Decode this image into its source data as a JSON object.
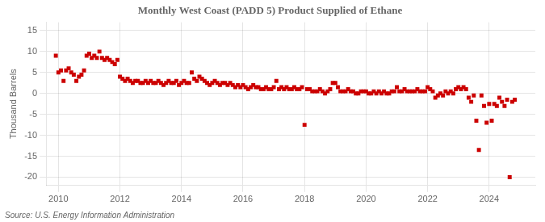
{
  "chart_data": {
    "type": "scatter",
    "title": "Monthly West Coast (PADD 5) Product Supplied of Ethane",
    "ylabel": "Thousand Barrels",
    "annotations": [
      "Source: U.S. Energy Information Administration"
    ],
    "color": "#cc0000",
    "marker": "square",
    "grid": true,
    "xlim": [
      2009.6,
      2025.5
    ],
    "xticks": [
      2010,
      2012,
      2014,
      2016,
      2018,
      2020,
      2022,
      2024
    ],
    "ylim": [
      -22,
      17
    ],
    "yticks": [
      -20,
      -15,
      -10,
      -5,
      0,
      5,
      10,
      15
    ],
    "x": [
      2009.9166666666667,
      2010,
      2010.0833333333333,
      2010.1666666666667,
      2010.25,
      2010.3333333333333,
      2010.4166666666667,
      2010.5,
      2010.5833333333333,
      2010.6666666666667,
      2010.75,
      2010.8333333333333,
      2010.9166666666667,
      2011,
      2011.0833333333333,
      2011.1666666666667,
      2011.25,
      2011.3333333333333,
      2011.4166666666667,
      2011.5,
      2011.5833333333333,
      2011.6666666666667,
      2011.75,
      2011.8333333333333,
      2011.9166666666667,
      2012,
      2012.0833333333333,
      2012.1666666666667,
      2012.25,
      2012.3333333333333,
      2012.4166666666667,
      2012.5,
      2012.5833333333333,
      2012.6666666666667,
      2012.75,
      2012.8333333333333,
      2012.9166666666667,
      2013,
      2013.0833333333333,
      2013.1666666666667,
      2013.25,
      2013.3333333333333,
      2013.4166666666667,
      2013.5,
      2013.5833333333333,
      2013.6666666666667,
      2013.75,
      2013.8333333333333,
      2013.9166666666667,
      2014,
      2014.0833333333333,
      2014.1666666666667,
      2014.25,
      2014.3333333333333,
      2014.4166666666667,
      2014.5,
      2014.5833333333333,
      2014.6666666666667,
      2014.75,
      2014.8333333333333,
      2014.9166666666667,
      2015,
      2015.0833333333333,
      2015.1666666666667,
      2015.25,
      2015.3333333333333,
      2015.4166666666667,
      2015.5,
      2015.5833333333333,
      2015.6666666666667,
      2015.75,
      2015.8333333333333,
      2015.9166666666667,
      2016,
      2016.0833333333333,
      2016.1666666666667,
      2016.25,
      2016.3333333333333,
      2016.4166666666667,
      2016.5,
      2016.5833333333333,
      2016.6666666666667,
      2016.75,
      2016.8333333333333,
      2016.9166666666667,
      2017,
      2017.0833333333333,
      2017.1666666666667,
      2017.25,
      2017.3333333333333,
      2017.4166666666667,
      2017.5,
      2017.5833333333333,
      2017.6666666666667,
      2017.75,
      2017.8333333333333,
      2017.9166666666667,
      2018,
      2018.0833333333333,
      2018.1666666666667,
      2018.25,
      2018.3333333333333,
      2018.4166666666667,
      2018.5,
      2018.5833333333333,
      2018.6666666666667,
      2018.75,
      2018.8333333333333,
      2018.9166666666667,
      2019,
      2019.0833333333333,
      2019.1666666666667,
      2019.25,
      2019.3333333333333,
      2019.4166666666667,
      2019.5,
      2019.5833333333333,
      2019.6666666666667,
      2019.75,
      2019.8333333333333,
      2019.9166666666667,
      2020,
      2020.0833333333333,
      2020.1666666666667,
      2020.25,
      2020.3333333333333,
      2020.4166666666667,
      2020.5,
      2020.5833333333333,
      2020.6666666666667,
      2020.75,
      2020.8333333333333,
      2020.9166666666667,
      2021,
      2021.0833333333333,
      2021.1666666666667,
      2021.25,
      2021.3333333333333,
      2021.4166666666667,
      2021.5,
      2021.5833333333333,
      2021.6666666666667,
      2021.75,
      2021.8333333333333,
      2021.9166666666667,
      2022,
      2022.0833333333333,
      2022.1666666666667,
      2022.25,
      2022.3333333333333,
      2022.4166666666667,
      2022.5,
      2022.5833333333333,
      2022.6666666666667,
      2022.75,
      2022.8333333333333,
      2022.9166666666667,
      2023,
      2023.0833333333333,
      2023.1666666666667,
      2023.25,
      2023.3333333333333,
      2023.4166666666667,
      2023.5,
      2023.5833333333333,
      2023.6666666666667,
      2023.75,
      2023.8333333333333,
      2023.9166666666667,
      2024,
      2024.0833333333333,
      2024.1666666666667,
      2024.25,
      2024.3333333333333,
      2024.4166666666667,
      2024.5,
      2024.5833333333333,
      2024.6666666666667,
      2024.75,
      2024.8333333333333
    ],
    "values": [
      9.0,
      5.0,
      5.5,
      3.0,
      5.5,
      6.0,
      5.0,
      4.5,
      3.0,
      4.0,
      4.5,
      5.5,
      9.0,
      9.5,
      8.5,
      9.0,
      8.5,
      10.0,
      8.5,
      8.0,
      8.5,
      8.0,
      7.5,
      7.0,
      8.0,
      4.0,
      3.5,
      3.0,
      3.5,
      3.0,
      2.5,
      3.0,
      3.0,
      2.5,
      2.5,
      3.0,
      2.5,
      3.0,
      2.5,
      2.5,
      3.0,
      2.5,
      2.0,
      2.5,
      3.0,
      2.5,
      2.5,
      3.0,
      2.0,
      2.5,
      3.0,
      2.5,
      2.5,
      5.0,
      3.5,
      3.0,
      4.0,
      3.5,
      3.0,
      2.5,
      2.0,
      2.5,
      3.0,
      2.5,
      2.0,
      2.5,
      2.5,
      2.0,
      2.5,
      2.0,
      1.5,
      2.0,
      1.5,
      2.0,
      1.5,
      1.0,
      1.5,
      2.0,
      1.5,
      1.5,
      1.0,
      1.0,
      1.5,
      1.0,
      1.0,
      1.5,
      3.0,
      1.0,
      1.5,
      1.0,
      1.5,
      1.0,
      1.0,
      1.5,
      1.0,
      1.0,
      1.5,
      -7.5,
      1.0,
      1.0,
      0.5,
      0.5,
      0.5,
      1.0,
      0.5,
      0.0,
      0.5,
      1.0,
      2.5,
      2.5,
      1.5,
      0.5,
      0.5,
      0.5,
      1.0,
      0.5,
      0.5,
      0.0,
      0.0,
      0.5,
      0.5,
      0.5,
      0.0,
      0.0,
      0.5,
      0.0,
      0.5,
      0.0,
      0.5,
      0.0,
      0.0,
      0.5,
      0.5,
      1.5,
      0.5,
      0.5,
      1.0,
      0.5,
      0.5,
      0.5,
      0.5,
      1.0,
      0.5,
      0.5,
      0.5,
      1.5,
      1.0,
      0.5,
      -1.0,
      -0.5,
      0.0,
      -0.5,
      0.5,
      0.0,
      0.5,
      0.0,
      1.0,
      1.5,
      1.0,
      1.5,
      1.0,
      -1.0,
      -2.0,
      -0.5,
      -6.5,
      -13.5,
      -0.5,
      -3.0,
      -7.0,
      -2.5,
      -6.5,
      -2.5,
      -3.0,
      -1.0,
      -2.0,
      -3.0,
      -1.5,
      -20.0,
      -2.0,
      -1.5
    ]
  }
}
